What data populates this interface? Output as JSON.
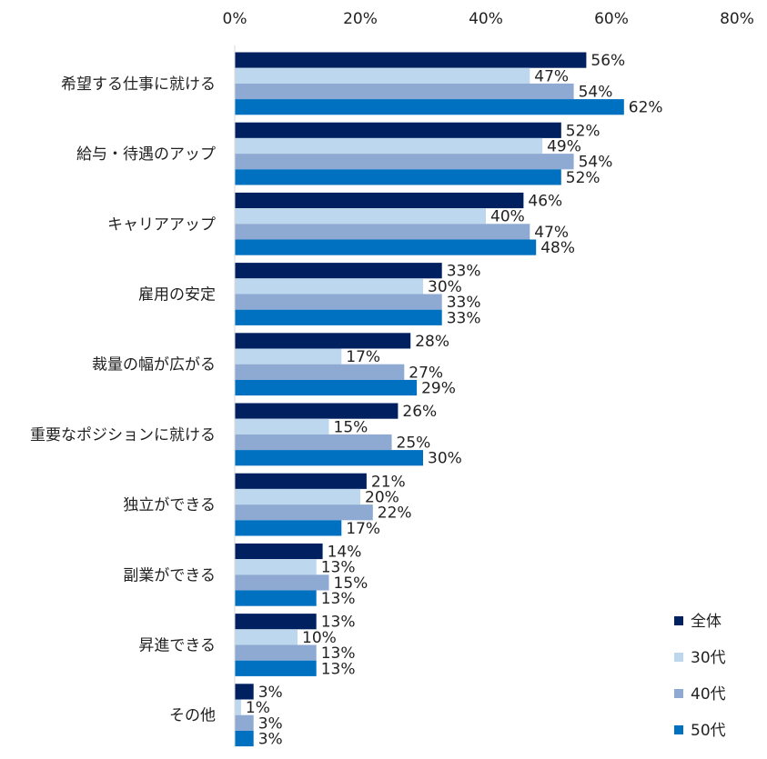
{
  "chart_data": {
    "type": "bar",
    "orientation": "horizontal",
    "xlim": [
      0,
      80
    ],
    "ticks": [
      "0%",
      "20%",
      "40%",
      "60%",
      "80%"
    ],
    "tick_values": [
      0,
      20,
      40,
      60,
      80
    ],
    "categories": [
      "希望する仕事に就ける",
      "給与・待遇のアップ",
      "キャリアアップ",
      "雇用の安定",
      "裁量の幅が広がる",
      "重要なポジションに就ける",
      "独立ができる",
      "副業ができる",
      "昇進できる",
      "その他"
    ],
    "series": [
      {
        "name": "全体",
        "color": "#002060",
        "values": [
          56,
          52,
          46,
          33,
          28,
          26,
          21,
          14,
          13,
          3
        ],
        "labels": [
          "56%",
          "52%",
          "46%",
          "33%",
          "28%",
          "26%",
          "21%",
          "14%",
          "13%",
          "3%"
        ]
      },
      {
        "name": "30代",
        "color": "#bdd7ee",
        "values": [
          47,
          49,
          40,
          30,
          17,
          15,
          20,
          13,
          10,
          1
        ],
        "labels": [
          "47%",
          "49%",
          "40%",
          "30%",
          "17%",
          "15%",
          "20%",
          "13%",
          "10%",
          "1%"
        ]
      },
      {
        "name": "40代",
        "color": "#8eaad2",
        "values": [
          54,
          54,
          47,
          33,
          27,
          25,
          22,
          15,
          13,
          3
        ],
        "labels": [
          "54%",
          "54%",
          "47%",
          "33%",
          "27%",
          "25%",
          "22%",
          "15%",
          "13%",
          "3%"
        ]
      },
      {
        "name": "50代",
        "color": "#0070c0",
        "values": [
          62,
          52,
          48,
          33,
          29,
          30,
          17,
          13,
          13,
          3
        ],
        "labels": [
          "62%",
          "52%",
          "48%",
          "33%",
          "29%",
          "30%",
          "17%",
          "13%",
          "13%",
          "3%"
        ]
      }
    ],
    "title": "",
    "xlabel": "",
    "ylabel": "",
    "grid": false,
    "legend": "bottom-right"
  }
}
